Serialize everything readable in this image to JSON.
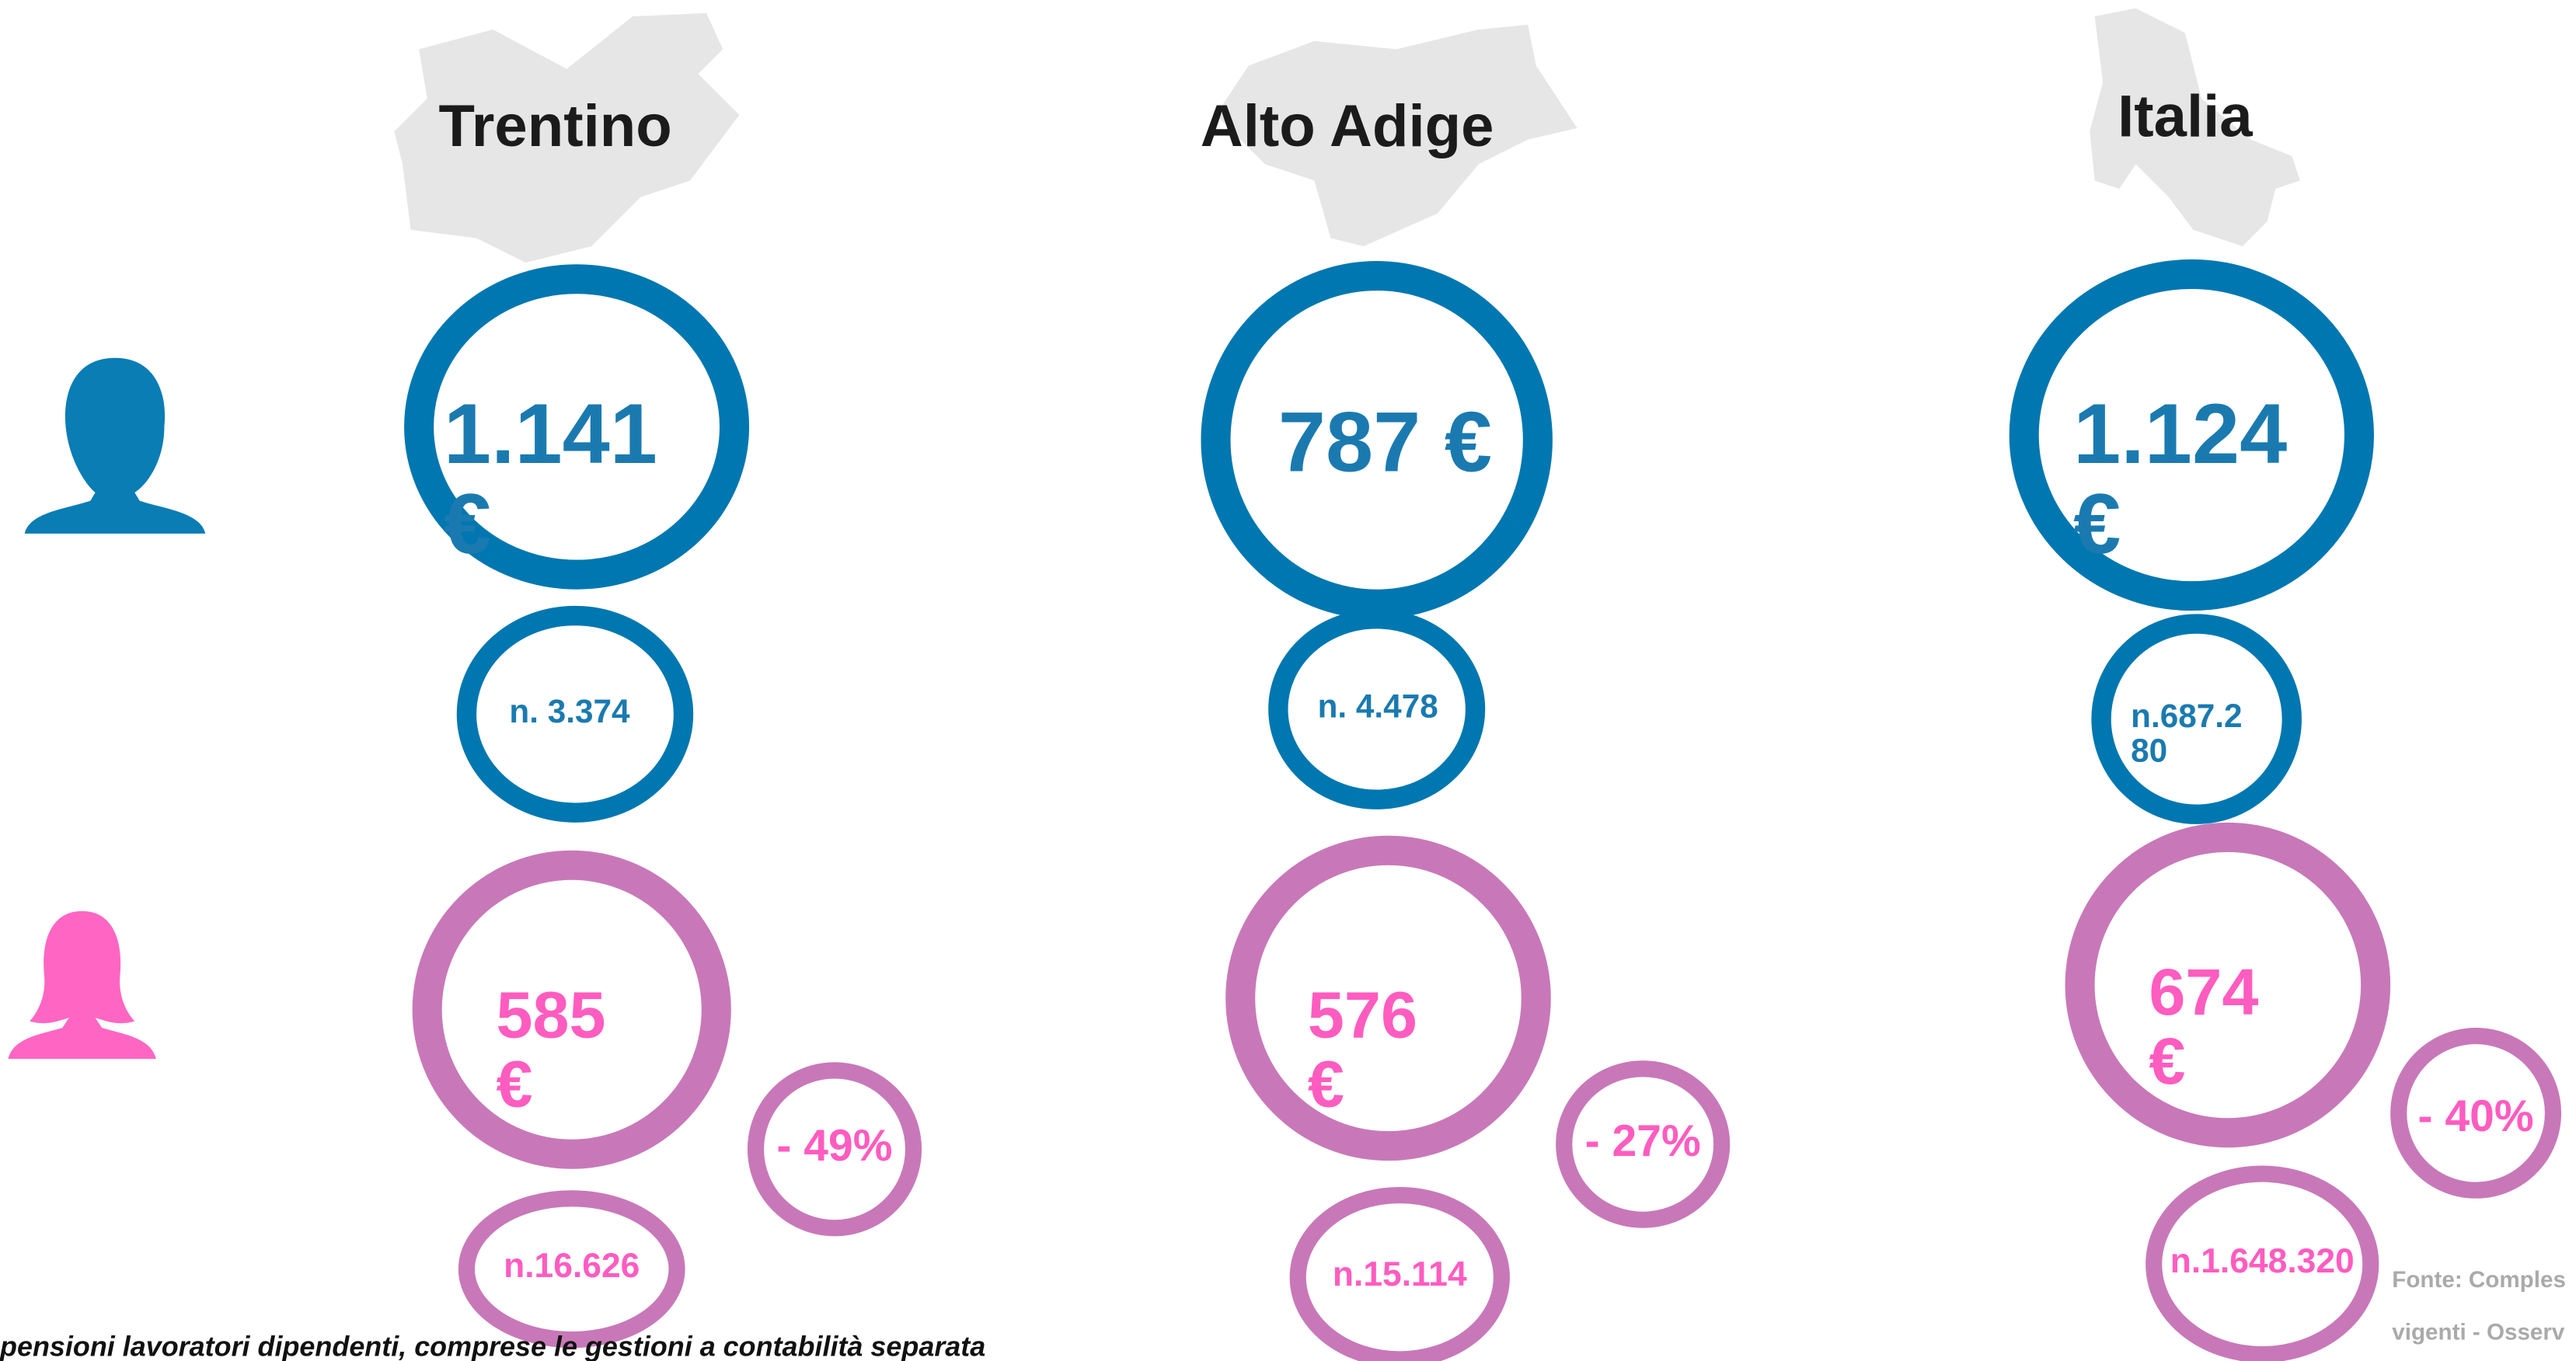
{
  "columns": [
    {
      "name": "Trentino",
      "male_amount": "1.141 €",
      "male_count": "n. 3.374",
      "female_amount": "585 €",
      "gap": "- 49%",
      "female_count": "n.16.626"
    },
    {
      "name": "Alto Adige",
      "male_amount": "787 €",
      "male_count": "n. 4.478",
      "female_amount": "576 €",
      "gap": "- 27%",
      "female_count": "n.15.114"
    },
    {
      "name": "Italia",
      "male_amount": "1.124 €",
      "male_count": "n.687.280",
      "female_amount": "674 €",
      "gap": "- 40%",
      "female_count": "n.1.648.320"
    }
  ],
  "footer": {
    "note": "pensioni lavoratori dipendenti, comprese le gestioni a contabilità separata",
    "source_line1": "Fonte: Comples",
    "source_line2": "vigenti - Osserv"
  }
}
